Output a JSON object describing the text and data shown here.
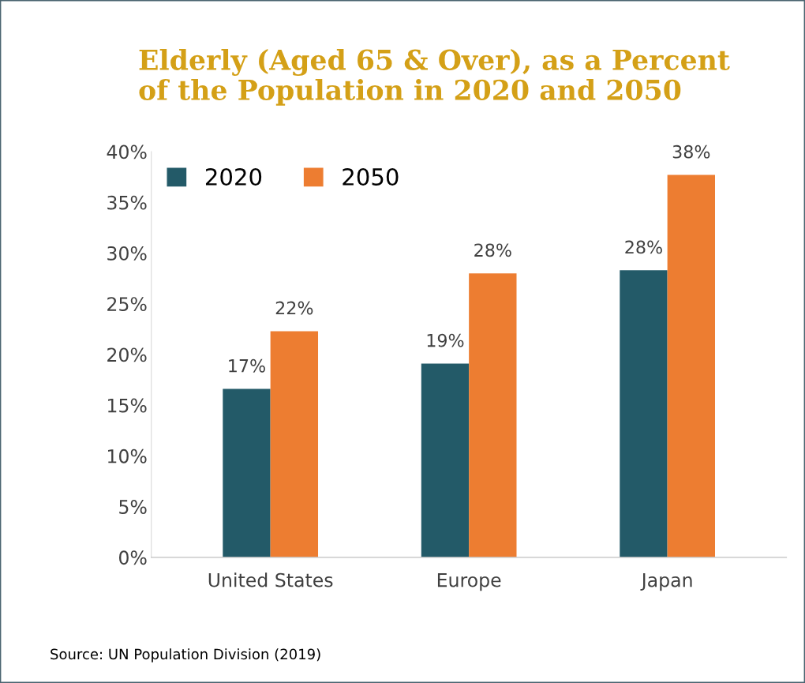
{
  "chart_data": {
    "type": "bar",
    "title": "Elderly (Aged 65 & Over), as a Percent\nof the Population in 2020 and 2050",
    "categories": [
      "United States",
      "Europe",
      "Japan"
    ],
    "series": [
      {
        "name": "2020",
        "color": "#235a68",
        "values": [
          16.6,
          19.1,
          28.3
        ],
        "value_labels": [
          "17%",
          "19%",
          "28%"
        ]
      },
      {
        "name": "2050",
        "color": "#ed7d31",
        "values": [
          22.3,
          28.0,
          37.7
        ],
        "value_labels": [
          "22%",
          "28%",
          "38%"
        ]
      }
    ],
    "ylim": [
      0,
      40
    ],
    "yticks": [
      {
        "value": 0,
        "label": "0%"
      },
      {
        "value": 5,
        "label": "5%"
      },
      {
        "value": 10,
        "label": "10%"
      },
      {
        "value": 15,
        "label": "15%"
      },
      {
        "value": 20,
        "label": "20%"
      },
      {
        "value": 25,
        "label": "25%"
      },
      {
        "value": 30,
        "label": "30%"
      },
      {
        "value": 35,
        "label": "35%"
      },
      {
        "value": 40,
        "label": "40%"
      }
    ],
    "grid": false,
    "legend": "top left",
    "annotations": [
      "Source: UN Population Division (2019)"
    ]
  }
}
